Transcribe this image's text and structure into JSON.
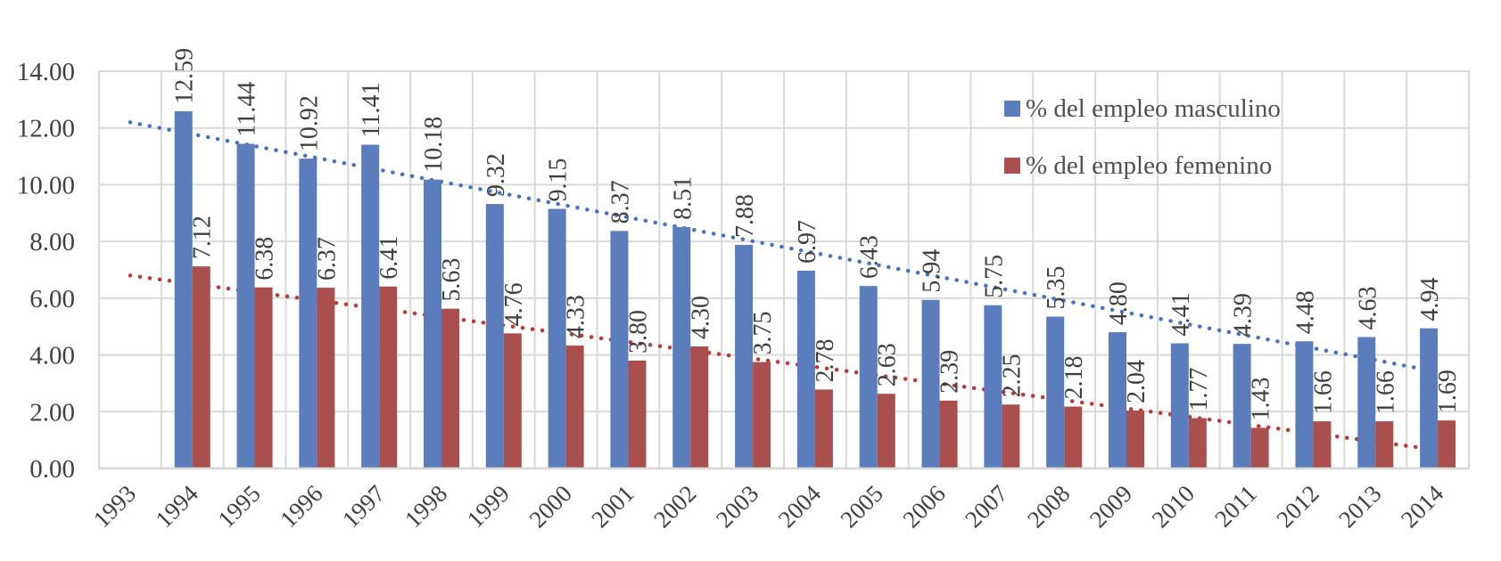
{
  "chart_data": {
    "type": "bar",
    "title": "",
    "xlabel": "",
    "ylabel": "",
    "ylim": [
      0,
      14
    ],
    "yticks": [
      "0.00",
      "2.00",
      "4.00",
      "6.00",
      "8.00",
      "10.00",
      "12.00",
      "14.00"
    ],
    "grid": true,
    "legend_position": "upper right (inside plot)",
    "categories": [
      "1993",
      "1994",
      "1995",
      "1996",
      "1997",
      "1998",
      "1999",
      "2000",
      "2001",
      "2002",
      "2003",
      "2004",
      "2005",
      "2006",
      "2007",
      "2008",
      "2009",
      "2010",
      "2011",
      "2012",
      "2013",
      "2014"
    ],
    "series": [
      {
        "name": "% del empleo masculino",
        "color": "#5B7DBB",
        "values": [
          null,
          12.59,
          11.44,
          10.92,
          11.41,
          10.18,
          9.32,
          9.15,
          8.37,
          8.51,
          7.88,
          6.97,
          6.43,
          5.94,
          5.75,
          5.35,
          4.8,
          4.41,
          4.39,
          4.48,
          4.63,
          4.94
        ],
        "labels": [
          "",
          "12.59",
          "11.44",
          "10.92",
          "11.41",
          "10.18",
          "9.32",
          "9.15",
          "8.37",
          "8.51",
          "7.88",
          "6.97",
          "6.43",
          "5.94",
          "5.75",
          "5.35",
          "4.80",
          "4.41",
          "4.39",
          "4.48",
          "4.63",
          "4.94"
        ]
      },
      {
        "name": "% del empleo femenino",
        "color": "#A94F4D",
        "values": [
          null,
          7.12,
          6.38,
          6.37,
          6.41,
          5.63,
          4.76,
          4.33,
          3.8,
          4.3,
          3.75,
          2.78,
          2.63,
          2.39,
          2.25,
          2.18,
          2.04,
          1.77,
          1.43,
          1.66,
          1.66,
          1.69
        ],
        "labels": [
          "",
          "7.12",
          "6.38",
          "6.37",
          "6.41",
          "5.63",
          "4.76",
          "4.33",
          "3.80",
          "4.30",
          "3.75",
          "2.78",
          "2.63",
          "2.39",
          "2.25",
          "2.18",
          "2.04",
          "1.77",
          "1.43",
          "1.66",
          "1.66",
          "1.69"
        ]
      }
    ],
    "trendlines": [
      {
        "series": "% del empleo masculino",
        "style": "dotted linear",
        "color": "#4A72C4",
        "start": {
          "category": "1993",
          "value": 12.2
        },
        "end": {
          "category": "2014",
          "value": 3.4
        }
      },
      {
        "series": "% del empleo femenino",
        "style": "dotted linear",
        "color": "#B33E3A",
        "start": {
          "category": "1993",
          "value": 6.8
        },
        "end": {
          "category": "2014",
          "value": 0.65
        }
      }
    ]
  },
  "legend": {
    "items": [
      {
        "label": "% del empleo masculino",
        "color": "#5B7DBB"
      },
      {
        "label": "% del empleo femenino",
        "color": "#A94F4D"
      }
    ]
  }
}
